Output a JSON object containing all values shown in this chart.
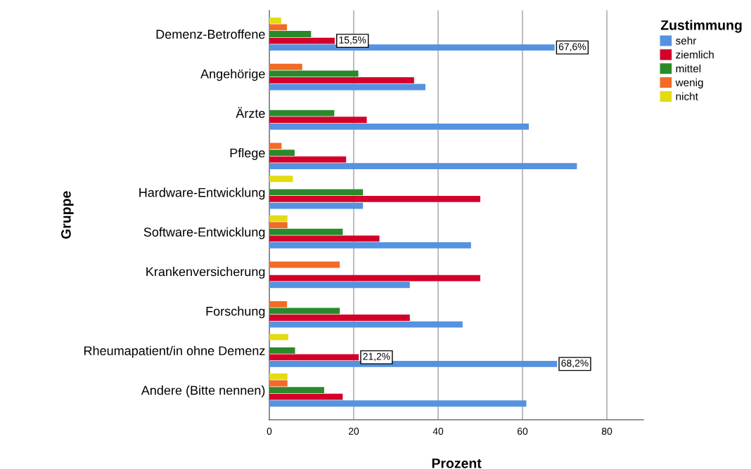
{
  "chart_data": {
    "type": "bar",
    "orientation": "horizontal",
    "xlabel": "Prozent",
    "ylabel": "Gruppe",
    "legend_title": "Zustimmung",
    "categories": [
      "Demenz-Betroffene",
      "Angehörige",
      "Ärzte",
      "Pflege",
      "Hardware-Entwicklung",
      "Software-Entwicklung",
      "Krankenversicherung",
      "Forschung",
      "Rheumapatient/in ohne Demenz",
      "Andere (Bitte nennen)"
    ],
    "series": [
      {
        "name": "sehr",
        "color": "#5592e0",
        "values": [
          67.6,
          37.0,
          61.5,
          72.9,
          22.2,
          47.8,
          33.3,
          45.8,
          68.2,
          60.9
        ],
        "value_labels": [
          "67,6%",
          null,
          null,
          null,
          null,
          null,
          null,
          null,
          "68,2%",
          null
        ]
      },
      {
        "name": "ziemlich",
        "color": "#d4002a",
        "values": [
          15.5,
          34.3,
          23.1,
          18.2,
          50.0,
          26.1,
          50.0,
          33.3,
          21.2,
          17.4
        ],
        "value_labels": [
          "15,5%",
          null,
          null,
          null,
          null,
          null,
          null,
          null,
          "21,2%",
          null
        ]
      },
      {
        "name": "mittel",
        "color": "#2a8a2a",
        "values": [
          9.9,
          21.1,
          15.4,
          6.0,
          22.2,
          17.4,
          null,
          16.7,
          6.1,
          13.0
        ]
      },
      {
        "name": "wenig",
        "color": "#f26b26",
        "values": [
          4.2,
          7.8,
          null,
          2.9,
          null,
          4.3,
          16.7,
          4.2,
          null,
          4.3
        ]
      },
      {
        "name": "nicht",
        "color": "#e2dc12",
        "values": [
          2.8,
          null,
          null,
          null,
          5.6,
          4.3,
          null,
          null,
          4.5,
          4.3
        ]
      }
    ],
    "xlim": [
      0,
      88.7
    ],
    "xticks": [
      0,
      20,
      40,
      60,
      80
    ],
    "grid": "x",
    "legend": "top right"
  }
}
